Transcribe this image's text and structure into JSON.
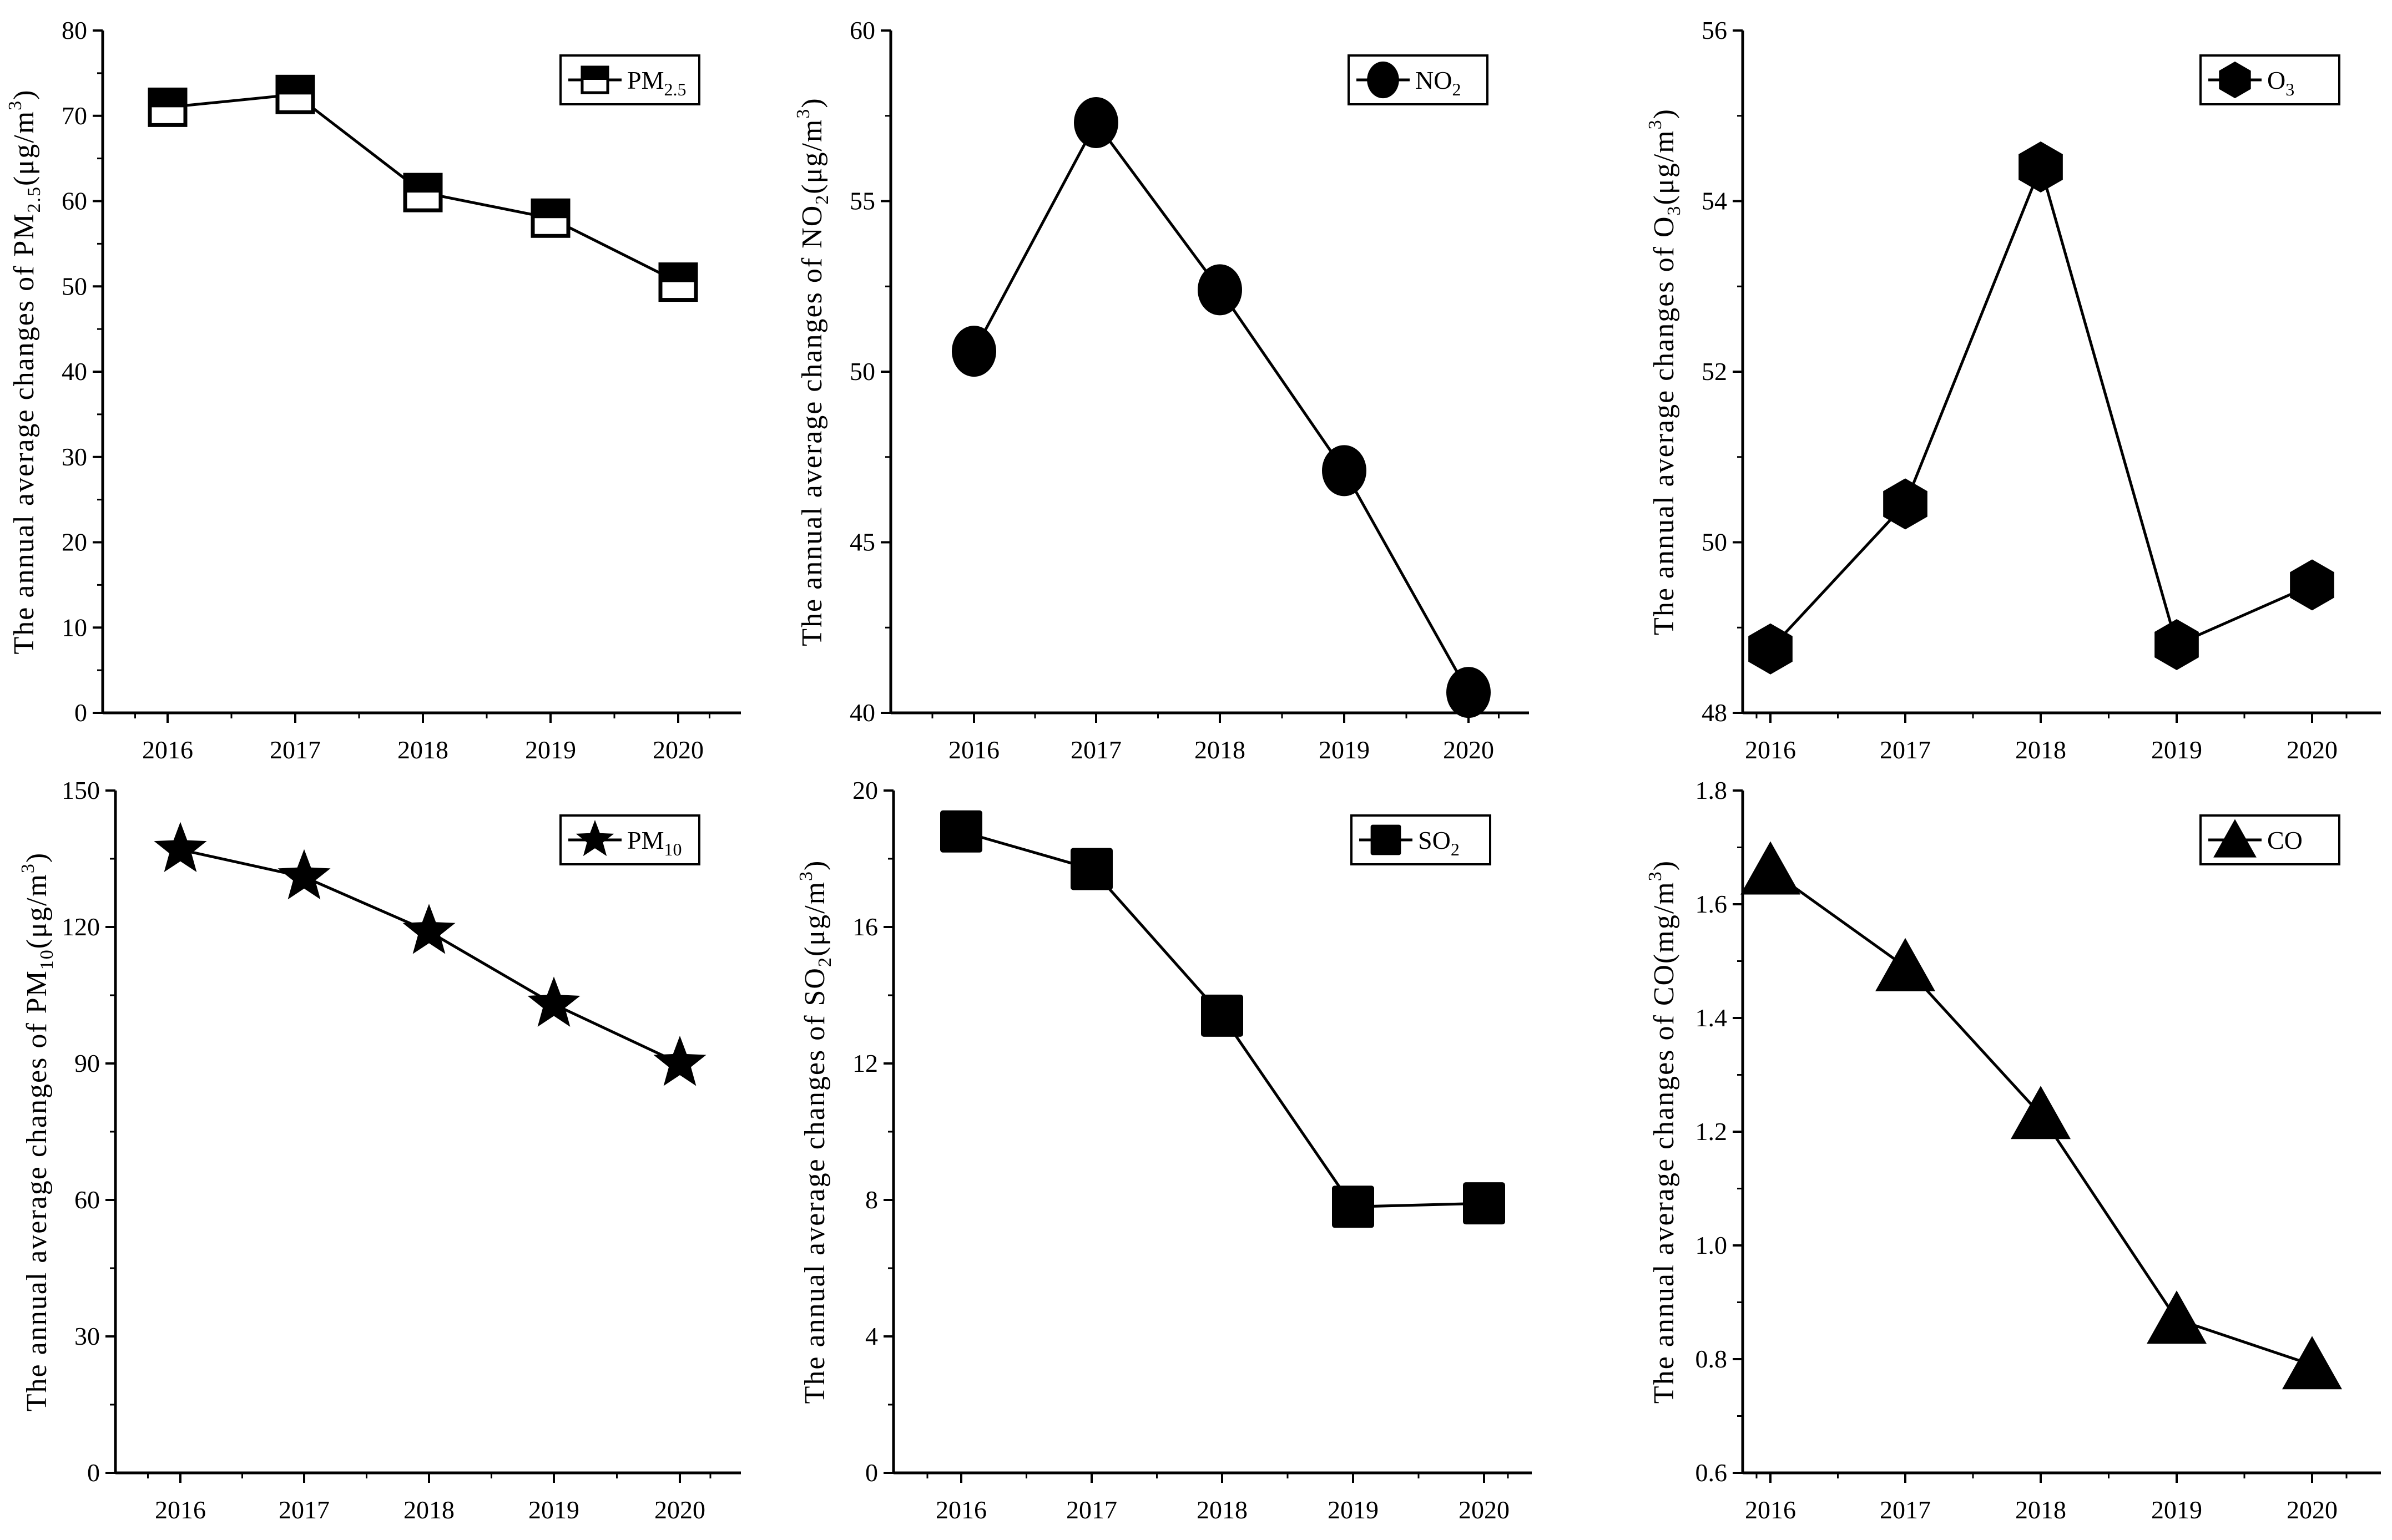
{
  "colors": {
    "ink": "#000000",
    "background": "#ffffff"
  },
  "chart_data": [
    {
      "type": "line",
      "series": [
        {
          "name": "PM2.5",
          "x": [
            "2016",
            "2017",
            "2018",
            "2019",
            "2020"
          ],
          "values": [
            71.0,
            72.5,
            61.0,
            58.0,
            50.5
          ]
        }
      ],
      "categories": [
        "2016",
        "2017",
        "2018",
        "2019",
        "2020"
      ],
      "ylabel": "The annual average changes of PM2.5(μg/m³)",
      "ylabel_parts": {
        "prefix": "The annual average changes of PM",
        "sub": "2.5",
        "mid": "(μg/m",
        "sup": "3",
        "suffix": ")"
      },
      "legend": {
        "main": "PM",
        "sub": "2.5",
        "position": "top-right"
      },
      "ylim": [
        0,
        80
      ],
      "yticks": [
        "0",
        "10",
        "20",
        "30",
        "40",
        "50",
        "60",
        "70",
        "80"
      ],
      "marker": "half-square"
    },
    {
      "type": "line",
      "series": [
        {
          "name": "NO2",
          "x": [
            "2016",
            "2017",
            "2018",
            "2019",
            "2020"
          ],
          "values": [
            50.6,
            57.3,
            52.4,
            47.1,
            40.6
          ]
        }
      ],
      "categories": [
        "2016",
        "2017",
        "2018",
        "2019",
        "2020"
      ],
      "ylabel": "The annual average changes of NO2(μg/m³)",
      "ylabel_parts": {
        "prefix": "The annual average changes of NO",
        "sub": "2",
        "mid": "(μg/m",
        "sup": "3",
        "suffix": ")"
      },
      "legend": {
        "main": "NO",
        "sub": "2",
        "position": "top-right"
      },
      "ylim": [
        40,
        60
      ],
      "yticks": [
        "40",
        "45",
        "50",
        "55",
        "60"
      ],
      "marker": "circle"
    },
    {
      "type": "line",
      "series": [
        {
          "name": "O3",
          "x": [
            "2016",
            "2017",
            "2018",
            "2019",
            "2020"
          ],
          "values": [
            48.75,
            50.45,
            54.4,
            48.8,
            49.5
          ]
        }
      ],
      "categories": [
        "2016",
        "2017",
        "2018",
        "2019",
        "2020"
      ],
      "ylabel": "The annual average changes of O3(μg/m³)",
      "ylabel_parts": {
        "prefix": "The annual average changes of O",
        "sub": "3",
        "mid": "(μg/m",
        "sup": "3",
        "suffix": ")"
      },
      "legend": {
        "main": "O",
        "sub": "3",
        "position": "top-right"
      },
      "ylim": [
        48,
        56
      ],
      "yticks": [
        "48",
        "50",
        "52",
        "54",
        "56"
      ],
      "marker": "hexagon"
    },
    {
      "type": "line",
      "series": [
        {
          "name": "PM10",
          "x": [
            "2016",
            "2017",
            "2018",
            "2019",
            "2020"
          ],
          "values": [
            137,
            131,
            119,
            103,
            90
          ]
        }
      ],
      "categories": [
        "2016",
        "2017",
        "2018",
        "2019",
        "2020"
      ],
      "ylabel": "The annual average changes of PM10(μg/m³)",
      "ylabel_parts": {
        "prefix": "The annual average changes of PM",
        "sub": "10",
        "mid": "(μg/m",
        "sup": "3",
        "suffix": ")"
      },
      "legend": {
        "main": "PM",
        "sub": "10",
        "position": "top-right"
      },
      "ylim": [
        0,
        150
      ],
      "yticks": [
        "0",
        "30",
        "60",
        "90",
        "120",
        "150"
      ],
      "marker": "star"
    },
    {
      "type": "line",
      "series": [
        {
          "name": "SO2",
          "x": [
            "2016",
            "2017",
            "2018",
            "2019",
            "2020"
          ],
          "values": [
            18.8,
            17.7,
            13.4,
            7.8,
            7.9
          ]
        }
      ],
      "categories": [
        "2016",
        "2017",
        "2018",
        "2019",
        "2020"
      ],
      "ylabel": "The annual average changes of SO2(μg/m³)",
      "ylabel_parts": {
        "prefix": "The annual average changes of SO",
        "sub": "2",
        "mid": "(μg/m",
        "sup": "3",
        "suffix": ")"
      },
      "legend": {
        "main": "SO",
        "sub": "2",
        "position": "top-right"
      },
      "ylim": [
        0,
        20
      ],
      "yticks": [
        "0",
        "4",
        "8",
        "12",
        "16",
        "20"
      ],
      "marker": "square"
    },
    {
      "type": "line",
      "series": [
        {
          "name": "CO",
          "x": [
            "2016",
            "2017",
            "2018",
            "2019",
            "2020"
          ],
          "values": [
            1.66,
            1.49,
            1.23,
            0.87,
            0.79
          ]
        }
      ],
      "categories": [
        "2016",
        "2017",
        "2018",
        "2019",
        "2020"
      ],
      "ylabel": "The annual average changes of CO(mg/m³)",
      "ylabel_parts": {
        "prefix": "The annual average changes of CO",
        "sub": "",
        "mid": "(mg/m",
        "sup": "3",
        "suffix": ")"
      },
      "legend": {
        "main": "CO",
        "sub": "",
        "position": "top-right"
      },
      "ylim": [
        0.6,
        1.8
      ],
      "yticks": [
        "0.6",
        "0.8",
        "1.0",
        "1.2",
        "1.4",
        "1.6",
        "1.8"
      ],
      "marker": "triangle"
    }
  ]
}
